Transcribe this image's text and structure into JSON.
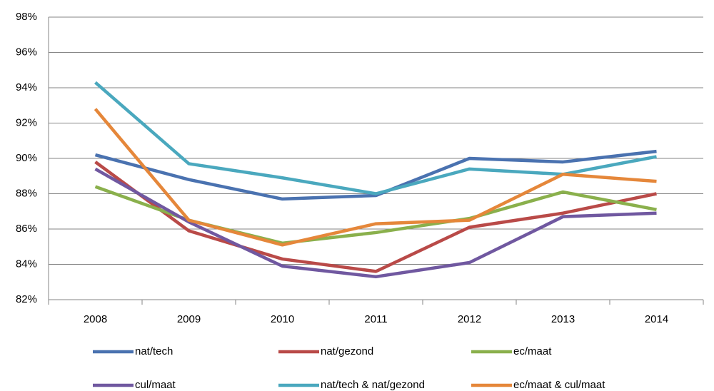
{
  "chart_data": {
    "type": "line",
    "categories": [
      "2008",
      "2009",
      "2010",
      "2011",
      "2012",
      "2013",
      "2014"
    ],
    "series": [
      {
        "name": "nat/tech",
        "color": "#4a72b0",
        "values": [
          90.2,
          88.8,
          87.7,
          87.9,
          90.0,
          89.8,
          90.4
        ]
      },
      {
        "name": "nat/gezond",
        "color": "#b94a48",
        "values": [
          89.8,
          85.9,
          84.3,
          83.6,
          86.1,
          86.9,
          88.0
        ]
      },
      {
        "name": "ec/maat",
        "color": "#8ab04c",
        "values": [
          88.4,
          86.5,
          85.2,
          85.8,
          86.6,
          88.1,
          87.1
        ]
      },
      {
        "name": "cul/maat",
        "color": "#7058a0",
        "values": [
          89.4,
          86.4,
          83.9,
          83.3,
          84.1,
          86.7,
          86.9
        ]
      },
      {
        "name": "nat/tech & nat/gezond",
        "color": "#4aa8be",
        "values": [
          94.3,
          89.7,
          88.9,
          88.0,
          89.4,
          89.1,
          90.1
        ]
      },
      {
        "name": "ec/maat & cul/maat",
        "color": "#e5873a",
        "values": [
          92.8,
          86.5,
          85.1,
          86.3,
          86.5,
          89.1,
          88.7
        ]
      }
    ],
    "ylim": [
      82,
      98
    ],
    "yticks": [
      {
        "value": 82,
        "label": "82%"
      },
      {
        "value": 84,
        "label": "84%"
      },
      {
        "value": 86,
        "label": "86%"
      },
      {
        "value": 88,
        "label": "88%"
      },
      {
        "value": 90,
        "label": "90%"
      },
      {
        "value": 92,
        "label": "92%"
      },
      {
        "value": 94,
        "label": "94%"
      },
      {
        "value": 96,
        "label": "96%"
      },
      {
        "value": 98,
        "label": "98%"
      }
    ],
    "grid": true,
    "legend": "bottom"
  }
}
